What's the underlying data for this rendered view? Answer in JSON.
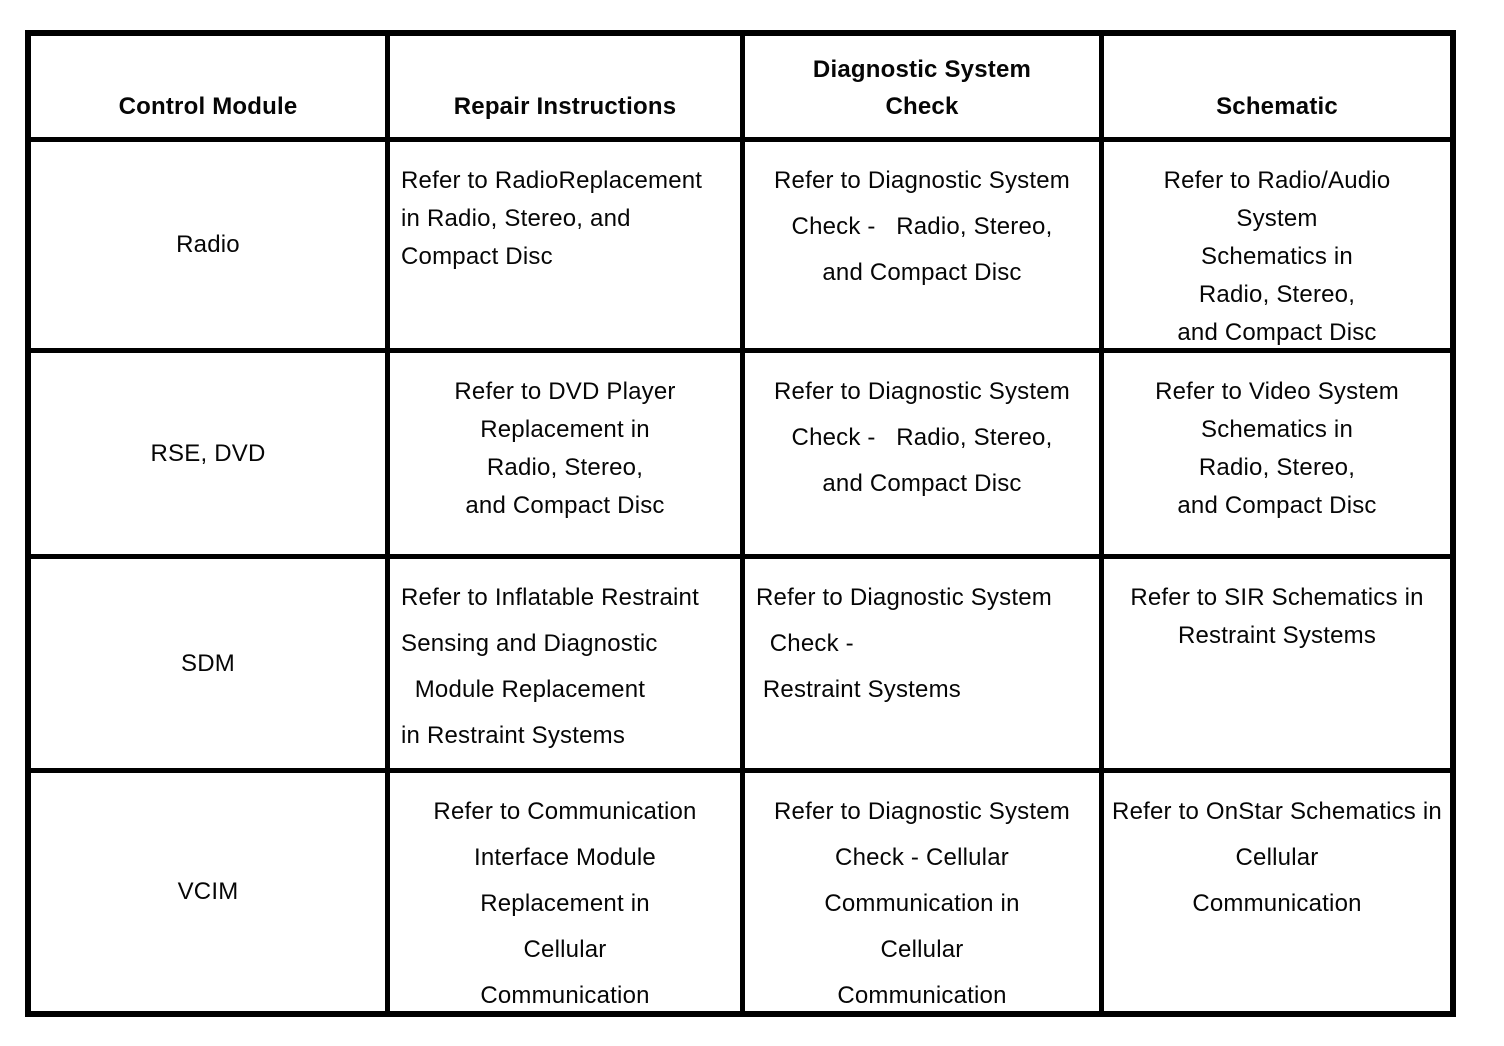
{
  "table": {
    "headers": [
      "Control Module",
      "Repair Instructions",
      "Diagnostic System\nCheck",
      "Schematic"
    ],
    "rows": [
      {
        "module": "Radio",
        "repair_instructions": "Refer to RadioReplacement\nin Radio, Stereo, and\nCompact Disc",
        "diagnostic_system_check": "Refer to Diagnostic System\nCheck -   Radio, Stereo,\nand Compact Disc",
        "schematic": "Refer to Radio/Audio\nSystem\nSchematics in\nRadio, Stereo,\nand Compact Disc"
      },
      {
        "module": "RSE, DVD",
        "repair_instructions": "Refer to DVD Player\nReplacement in\nRadio, Stereo,\nand Compact Disc",
        "diagnostic_system_check": "Refer to Diagnostic System\nCheck -   Radio, Stereo,\nand Compact Disc",
        "schematic": "Refer to Video System\nSchematics in\nRadio, Stereo,\nand Compact Disc"
      },
      {
        "module": "SDM",
        "repair_instructions": "Refer to Inflatable Restraint\nSensing and Diagnostic\n  Module Replacement\nin Restraint Systems",
        "diagnostic_system_check": "Refer to Diagnostic System\n  Check -\n Restraint Systems",
        "schematic": "Refer to SIR Schematics in\nRestraint Systems"
      },
      {
        "module": "VCIM",
        "repair_instructions": "Refer to Communication\nInterface Module\nReplacement in\nCellular\nCommunication",
        "diagnostic_system_check": "Refer to Diagnostic System\nCheck - Cellular\nCommunication in\nCellular\nCommunication",
        "schematic": "Refer to OnStar Schematics in\nCellular\nCommunication"
      }
    ]
  }
}
